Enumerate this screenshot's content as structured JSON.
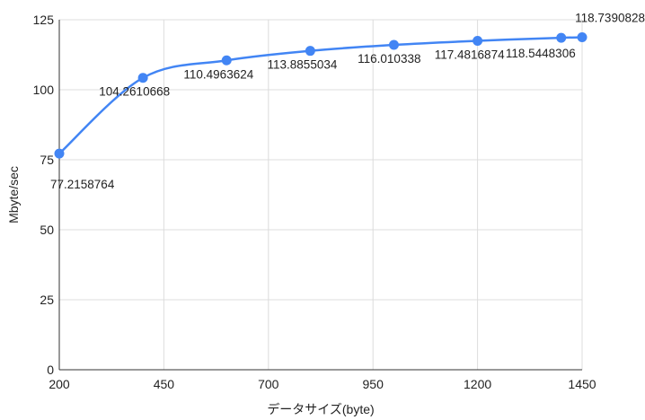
{
  "chart_data": {
    "type": "line",
    "xlabel": "データサイズ(byte)",
    "ylabel": "Mbyte/sec",
    "xlim": [
      200,
      1450
    ],
    "ylim": [
      0,
      125
    ],
    "x_ticks": [
      200,
      450,
      700,
      950,
      1200,
      1450
    ],
    "y_ticks": [
      0,
      25,
      50,
      75,
      100,
      125
    ],
    "grid": true,
    "series": [
      {
        "color": "#4285f4",
        "x": [
          200,
          400,
          600,
          800,
          1000,
          1200,
          1400,
          1450
        ],
        "y": [
          77.2158764,
          104.2610668,
          110.4963624,
          113.8855034,
          116.010338,
          117.4816874,
          118.5448306,
          118.7390828
        ],
        "labels": [
          "77.2158764",
          "104.2610668",
          "110.4963624",
          "113.8855034",
          "116.010338",
          "117.4816874",
          "118.5448306",
          "118.7390828"
        ]
      }
    ]
  }
}
